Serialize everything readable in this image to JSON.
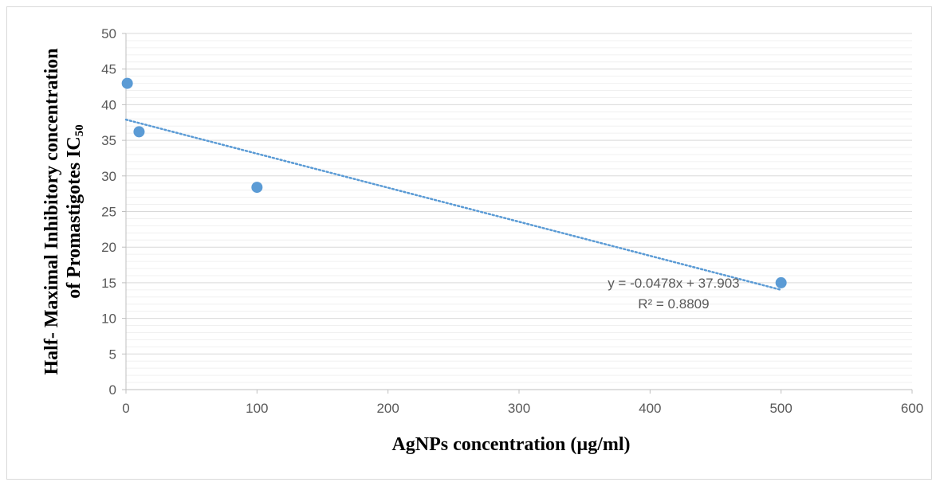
{
  "chart_data": {
    "type": "scatter",
    "title": "",
    "xlabel": "AgNPs concentration (µg/ml)",
    "ylabel_line1": "Half- Maximal Inhibitory concentration",
    "ylabel_line2_main": "of Promastigotes IC",
    "ylabel_line2_sub": "50",
    "xlim": [
      0,
      600
    ],
    "ylim": [
      0,
      50
    ],
    "x_ticks": [
      0,
      100,
      200,
      300,
      400,
      500,
      600
    ],
    "y_ticks": [
      0,
      5,
      10,
      15,
      20,
      25,
      30,
      35,
      40,
      45,
      50
    ],
    "y_minor_step": 1,
    "grid": "horizontal major and minor",
    "series": [
      {
        "points": [
          {
            "x": 1,
            "y": 43
          },
          {
            "x": 10,
            "y": 36.2
          },
          {
            "x": 100,
            "y": 28.4
          },
          {
            "x": 500,
            "y": 15
          }
        ],
        "color": "#5b9bd5"
      }
    ],
    "trendline": {
      "type": "linear",
      "slope": -0.0478,
      "intercept": 37.903,
      "x_range": [
        0,
        500
      ],
      "style": "dotted",
      "color": "#5b9bd5",
      "equation": "y = -0.0478x + 37.903",
      "r_squared": "R² = 0.8809"
    }
  }
}
